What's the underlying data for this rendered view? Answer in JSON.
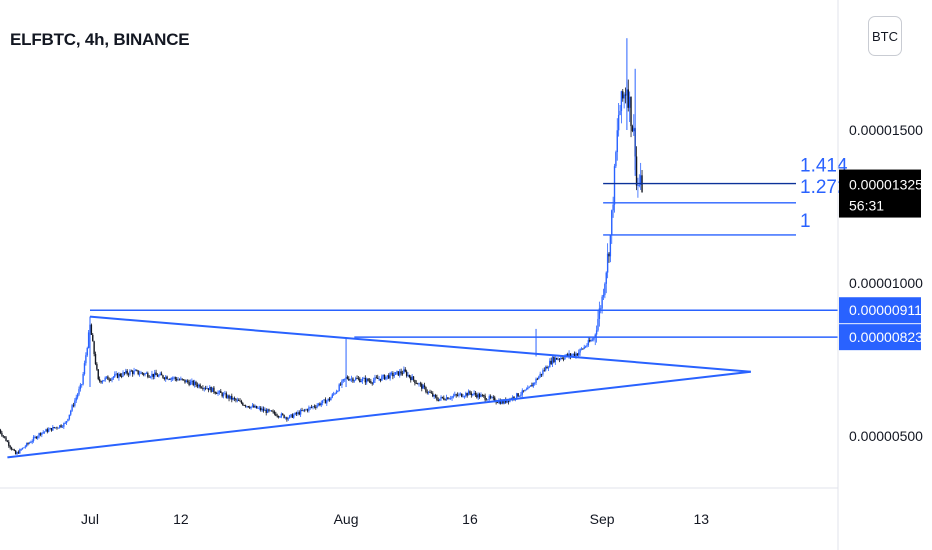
{
  "header": {
    "title": "ELFBTC, 4h, BINANCE",
    "currency_button": "BTC"
  },
  "colors": {
    "up": "#2962ff",
    "down": "#131722",
    "drawing": "#2962ff",
    "price_tag_bg": "#000000",
    "level_tag_bg": "#2962ff"
  },
  "price_tag": {
    "price": "0.00001325",
    "countdown": "56:31"
  },
  "level_tags": [
    {
      "label": "0.00000911",
      "value": 9.11e-06
    },
    {
      "label": "0.00000823",
      "value": 8.23e-06
    }
  ],
  "fib_labels": [
    {
      "label": "1.414",
      "value": 1.325e-05
    },
    {
      "label": "1.272",
      "value": 1.262e-05
    },
    {
      "label": "1",
      "value": 1.157e-05
    }
  ],
  "chart_data": {
    "type": "candlestick",
    "title": "ELFBTC, 4h, BINANCE",
    "symbol": "ELFBTC",
    "timeframe": "4h",
    "exchange": "BINANCE",
    "y_ticks": [
      {
        "label": "0.00001500",
        "value": 1.5e-05
      },
      {
        "label": "0.00001000",
        "value": 1e-05
      },
      {
        "label": "0.00000500",
        "value": 5e-06
      }
    ],
    "x_ticks": [
      "Jul",
      "12",
      "Aug",
      "16",
      "Sep",
      "13"
    ],
    "ylim": [
      2.5e-06,
      1.83e-05
    ],
    "grid": false,
    "price_path": [
      [
        "Jun 20",
        5.2e-06
      ],
      [
        "Jun 22",
        4.4e-06
      ],
      [
        "Jun 25",
        5.1e-06
      ],
      [
        "Jun 28",
        5.4e-06
      ],
      [
        "Jun 30",
        6.7e-06
      ],
      [
        "Jul 1",
        8.6e-06
      ],
      [
        "Jul 2",
        6.8e-06
      ],
      [
        "Jul 6",
        7.1e-06
      ],
      [
        "Jul 11",
        6.9e-06
      ],
      [
        "Jul 15",
        6.6e-06
      ],
      [
        "Jul 20",
        6e-06
      ],
      [
        "Jul 25",
        5.6e-06
      ],
      [
        "Jul 30",
        6.2e-06
      ],
      [
        "Aug 1",
        6.9e-06
      ],
      [
        "Aug 4",
        6.8e-06
      ],
      [
        "Aug 8",
        7.1e-06
      ],
      [
        "Aug 12",
        6.2e-06
      ],
      [
        "Aug 16",
        6.4e-06
      ],
      [
        "Aug 20",
        6.1e-06
      ],
      [
        "Aug 23",
        6.5e-06
      ],
      [
        "Aug 26",
        7.5e-06
      ],
      [
        "Aug 29",
        7.7e-06
      ],
      [
        "Aug 31",
        8.2e-06
      ],
      [
        "Sep 1",
        9.5e-06
      ],
      [
        "Sep 2",
        1.15e-05
      ],
      [
        "Sep 3",
        1.55e-05
      ],
      [
        "Sep 4",
        1.65e-05
      ],
      [
        "Sep 5",
        1.45e-05
      ],
      [
        "Sep 5",
        1.32e-05
      ]
    ],
    "drawings": {
      "triangle": {
        "upper_line": [
          [
            "Jul 1",
            8.9e-06
          ],
          [
            "Sep 19",
            7.1e-06
          ]
        ],
        "lower_line": [
          [
            "Jun 21",
            4.3e-06
          ],
          [
            "Sep 19",
            7.1e-06
          ]
        ]
      },
      "horizontal_levels": [
        9.11e-06,
        8.23e-06
      ],
      "fib_extension": [
        {
          "ratio": "1.414",
          "value": 1.325e-05
        },
        {
          "ratio": "1.272",
          "value": 1.262e-05
        },
        {
          "ratio": "1",
          "value": 1.157e-05
        }
      ]
    }
  }
}
